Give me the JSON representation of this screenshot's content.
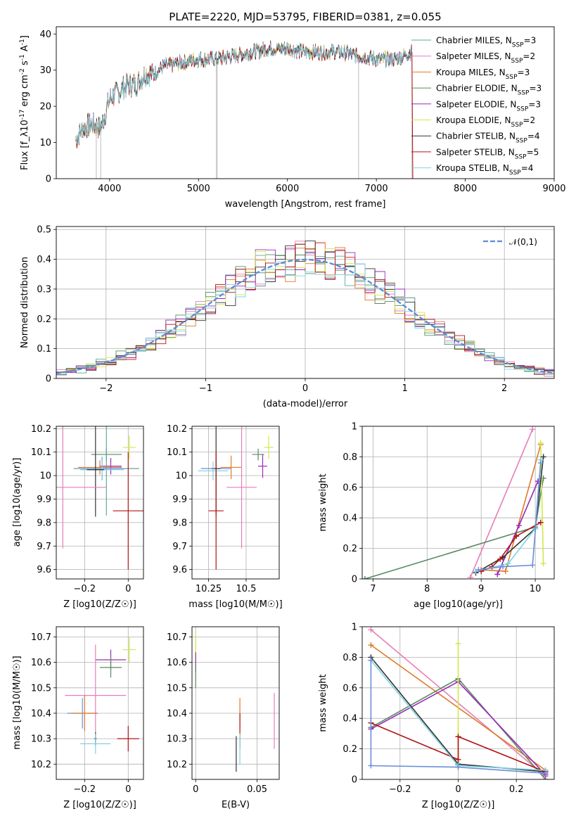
{
  "figure": {
    "title": "PLATE=2220, MJD=53795, FIBERID=0381, z=0.055"
  },
  "colors": {
    "Chabrier MILES": "#5fa6a0",
    "Salpeter MILES": "#e87db8",
    "Kroupa MILES": "#de7b2a",
    "Chabrier ELODIE": "#5a8a62",
    "Salpeter ELODIE": "#9a2ab8",
    "Kroupa ELODIE": "#d2e84a",
    "Chabrier STELIB": "#333333",
    "Salpeter STELIB": "#b01515",
    "Kroupa STELIB": "#7dd3e3",
    "blue": "#6a8fd8",
    "normal": "#5b8bd9"
  },
  "chart_data": [
    {
      "id": "spectrum",
      "type": "line",
      "xlabel": "wavelength [Angstrom, rest frame]",
      "ylabel": "Flux [f_λ10^-17 erg cm^-2 s^-1 A^-1]",
      "xlim": [
        3400,
        9000
      ],
      "ylim": [
        0,
        42
      ],
      "xticks": [
        4000,
        5000,
        6000,
        7000,
        8000,
        9000
      ],
      "yticks": [
        0,
        10,
        20,
        30,
        40
      ],
      "grid": false,
      "legend_position": "right",
      "legend": [
        "Chabrier MILES, N_SSP=3",
        "Salpeter MILES, N_SSP=2",
        "Kroupa MILES, N_SSP=3",
        "Chabrier ELODIE, N_SSP=3",
        "Salpeter ELODIE, N_SSP=3",
        "Kroupa ELODIE, N_SSP=2",
        "Chabrier STELIB, N_SSP=4",
        "Salpeter STELIB, N_SSP=5",
        "Kroupa STELIB, N_SSP=4"
      ],
      "continuum": {
        "x": [
          3620,
          3700,
          3800,
          3900,
          3950,
          4000,
          4100,
          4200,
          4300,
          4400,
          4500,
          4600,
          4800,
          5000,
          5200,
          5400,
          5600,
          5800,
          6000,
          6200,
          6400,
          6600,
          6800,
          7000,
          7200,
          7400
        ],
        "y": [
          11,
          14,
          15,
          14,
          18,
          22,
          24,
          26,
          26,
          29,
          29,
          31,
          32,
          33,
          33,
          34,
          35,
          36,
          36,
          35,
          35,
          35,
          34,
          33,
          33,
          35
        ]
      }
    },
    {
      "id": "residuals",
      "type": "histogram",
      "xlabel": "(data-model)/error",
      "ylabel": "Normed distribution",
      "xlim": [
        -2.5,
        2.5
      ],
      "ylim": [
        0,
        0.51
      ],
      "xticks": [
        -2,
        -1,
        0,
        1,
        2
      ],
      "yticks": [
        0.0,
        0.1,
        0.2,
        0.3,
        0.4,
        0.5
      ],
      "grid": true,
      "legend_position": "upper right",
      "legend": [
        "𝒩(0,1)"
      ],
      "bin_width": 0.1,
      "bin_centers": [
        -2.45,
        -2.35,
        -2.25,
        -2.15,
        -2.05,
        -1.95,
        -1.85,
        -1.75,
        -1.65,
        -1.55,
        -1.45,
        -1.35,
        -1.25,
        -1.15,
        -1.05,
        -0.95,
        -0.85,
        -0.75,
        -0.65,
        -0.55,
        -0.45,
        -0.35,
        -0.25,
        -0.15,
        -0.05,
        0.05,
        0.15,
        0.25,
        0.35,
        0.45,
        0.55,
        0.65,
        0.75,
        0.85,
        0.95,
        1.05,
        1.15,
        1.25,
        1.35,
        1.45,
        1.55,
        1.65,
        1.75,
        1.85,
        1.95,
        2.05,
        2.15,
        2.25,
        2.35,
        2.45
      ]
    },
    {
      "id": "age-Z",
      "type": "scatter",
      "xlabel": "Z [log10(Z/Z☉)]",
      "ylabel": "age [log10(age/yr)]",
      "xlim": [
        -0.33,
        0.07
      ],
      "ylim": [
        9.56,
        10.21
      ],
      "xticks": [
        -0.2,
        0.0
      ],
      "yticks": [
        9.6,
        9.7,
        9.8,
        9.9,
        10.0,
        10.1,
        10.2
      ],
      "grid": true,
      "points": [
        {
          "model": "Kroupa ELODIE",
          "x": 0.005,
          "y": 10.12,
          "xerr": 0.03,
          "yerr": 0.05
        },
        {
          "model": "Chabrier ELODIE",
          "x": -0.1,
          "y": 10.09,
          "xerr": 0.07,
          "yerr": 0.025
        },
        {
          "model": "Salpeter ELODIE",
          "x": -0.08,
          "y": 10.04,
          "xerr": 0.05,
          "yerr": 0.035
        },
        {
          "model": "Kroupa MILES",
          "x": -0.13,
          "y": 10.035,
          "xerr": 0.1,
          "yerr": 0.03
        },
        {
          "model": "Chabrier MILES",
          "x": -0.1,
          "y": 10.03,
          "xerr": 0.15,
          "yerr": 0.2
        },
        {
          "model": "blue",
          "x": -0.12,
          "y": 10.03,
          "xerr": 0.1,
          "yerr": 0.05
        },
        {
          "model": "Kroupa STELIB",
          "x": -0.12,
          "y": 10.025,
          "xerr": 0.1,
          "yerr": 0.04
        },
        {
          "model": "Chabrier STELIB",
          "x": -0.15,
          "y": 10.025,
          "xerr": 0.04,
          "yerr": 0.2
        },
        {
          "model": "Salpeter MILES",
          "x": -0.3,
          "y": 9.95,
          "xerr": 0.2,
          "yerr": 0.26
        },
        {
          "model": "Salpeter STELIB",
          "x": 0.0,
          "y": 9.85,
          "xerr": 0.07,
          "yerr": 0.25
        }
      ]
    },
    {
      "id": "age-mass",
      "type": "scatter",
      "xlabel": "mass [log10(M/M☉)]",
      "ylabel": "",
      "xlim": [
        10.14,
        10.72
      ],
      "ylim": [
        9.56,
        10.21
      ],
      "xticks": [
        10.25,
        10.5
      ],
      "yticks": [
        9.6,
        9.7,
        9.8,
        9.9,
        10.0,
        10.1,
        10.2
      ],
      "grid": true,
      "points": [
        {
          "model": "Kroupa ELODIE",
          "x": 10.65,
          "y": 10.12,
          "xerr": 0.03,
          "yerr": 0.05
        },
        {
          "model": "Chabrier ELODIE",
          "x": 10.58,
          "y": 10.09,
          "xerr": 0.04,
          "yerr": 0.025
        },
        {
          "model": "Salpeter ELODIE",
          "x": 10.61,
          "y": 10.04,
          "xerr": 0.03,
          "yerr": 0.05
        },
        {
          "model": "Kroupa MILES",
          "x": 10.4,
          "y": 10.035,
          "xerr": 0.07,
          "yerr": 0.05
        },
        {
          "model": "blue",
          "x": 10.3,
          "y": 10.03,
          "xerr": 0.1,
          "yerr": 0.04
        },
        {
          "model": "Chabrier STELIB",
          "x": 10.3,
          "y": 10.03,
          "xerr": 0.03,
          "yerr": 0.2
        },
        {
          "model": "Kroupa STELIB",
          "x": 10.28,
          "y": 10.02,
          "xerr": 0.1,
          "yerr": 0.04
        },
        {
          "model": "Salpeter MILES",
          "x": 10.47,
          "y": 9.95,
          "xerr": 0.1,
          "yerr": 0.26
        },
        {
          "model": "Salpeter STELIB",
          "x": 10.3,
          "y": 9.85,
          "xerr": 0.05,
          "yerr": 0.25
        }
      ]
    },
    {
      "id": "weight-age",
      "type": "line",
      "xlabel": "age [log10(age/yr)]",
      "ylabel": "mass weight",
      "xlim": [
        6.8,
        10.35
      ],
      "ylim": [
        0,
        1.0
      ],
      "xticks": [
        7,
        8,
        9,
        10
      ],
      "yticks": [
        0.0,
        0.2,
        0.4,
        0.6,
        0.8,
        1.0
      ],
      "grid": true,
      "series": [
        {
          "model": "Salpeter MILES",
          "x": [
            8.8,
            9.95
          ],
          "y": [
            0.01,
            0.98
          ]
        },
        {
          "model": "Kroupa MILES",
          "x": [
            9.0,
            9.45,
            10.1
          ],
          "y": [
            0.06,
            0.05,
            0.88
          ]
        },
        {
          "model": "Chabrier ELODIE",
          "x": [
            6.85,
            10.0,
            10.15
          ],
          "y": [
            0.0,
            0.34,
            0.66
          ]
        },
        {
          "model": "Salpeter ELODIE",
          "x": [
            9.3,
            9.7,
            10.05
          ],
          "y": [
            0.03,
            0.35,
            0.64
          ]
        },
        {
          "model": "Kroupa ELODIE",
          "x": [
            10.1,
            10.15
          ],
          "y": [
            0.89,
            0.1
          ]
        },
        {
          "model": "Chabrier STELIB",
          "x": [
            8.9,
            9.4,
            10.0,
            10.15
          ],
          "y": [
            0.04,
            0.14,
            0.33,
            0.8
          ]
        },
        {
          "model": "Salpeter STELIB",
          "x": [
            9.0,
            9.2,
            9.35,
            9.65,
            10.1
          ],
          "y": [
            0.05,
            0.08,
            0.13,
            0.28,
            0.37
          ]
        },
        {
          "model": "Kroupa STELIB",
          "x": [
            8.9,
            9.5,
            10.0,
            10.1
          ],
          "y": [
            0.05,
            0.1,
            0.33,
            0.78
          ]
        },
        {
          "model": "blue",
          "x": [
            8.95,
            9.4,
            9.95,
            10.1
          ],
          "y": [
            0.06,
            0.08,
            0.09,
            0.76
          ]
        }
      ]
    },
    {
      "id": "mass-Z",
      "type": "scatter",
      "xlabel": "Z [log10(Z/Z☉)]",
      "ylabel": "mass [log10(M/M☉)]",
      "xlim": [
        -0.33,
        0.07
      ],
      "ylim": [
        10.14,
        10.74
      ],
      "xticks": [
        -0.2,
        0.0
      ],
      "yticks": [
        10.2,
        10.3,
        10.4,
        10.5,
        10.6,
        10.7
      ],
      "grid": true,
      "points": [
        {
          "model": "Kroupa ELODIE",
          "x": 0.005,
          "y": 10.65,
          "xerr": 0.03,
          "yerr": 0.05
        },
        {
          "model": "Salpeter ELODIE",
          "x": -0.08,
          "y": 10.61,
          "xerr": 0.07,
          "yerr": 0.04
        },
        {
          "model": "Chabrier ELODIE",
          "x": -0.08,
          "y": 10.58,
          "xerr": 0.05,
          "yerr": 0.04
        },
        {
          "model": "Salpeter MILES",
          "x": -0.15,
          "y": 10.47,
          "xerr": 0.14,
          "yerr": 0.2
        },
        {
          "model": "blue",
          "x": -0.21,
          "y": 10.4,
          "xerr": 0.07,
          "yerr": 0.06
        },
        {
          "model": "Kroupa MILES",
          "x": -0.2,
          "y": 10.4,
          "xerr": 0.06,
          "yerr": 0.07
        },
        {
          "model": "Chabrier STELIB",
          "x": -0.15,
          "y": 10.3,
          "xerr": 0.005,
          "yerr": 0.025
        },
        {
          "model": "Salpeter STELIB",
          "x": 0.0,
          "y": 10.3,
          "xerr": 0.05,
          "yerr": 0.05
        },
        {
          "model": "Kroupa STELIB",
          "x": -0.15,
          "y": 10.28,
          "xerr": 0.07,
          "yerr": 0.04
        }
      ]
    },
    {
      "id": "mass-EBV",
      "type": "scatter",
      "xlabel": "E(B-V)",
      "ylabel": "",
      "xlim": [
        -0.003,
        0.068
      ],
      "ylim": [
        10.14,
        10.74
      ],
      "xticks": [
        0.0,
        0.05
      ],
      "yticks": [
        10.2,
        10.3,
        10.4,
        10.5,
        10.6,
        10.7
      ],
      "grid": true,
      "points": [
        {
          "model": "Kroupa ELODIE",
          "x": 0.0,
          "y": 10.66,
          "xerr": 0.0,
          "yerr": 0.06
        },
        {
          "model": "Salpeter ELODIE",
          "x": 0.0,
          "y": 10.6,
          "xerr": 0.0,
          "yerr": 0.04
        },
        {
          "model": "Chabrier ELODIE",
          "x": 0.0,
          "y": 10.55,
          "xerr": 0.0,
          "yerr": 0.05
        },
        {
          "model": "Kroupa MILES",
          "x": 0.036,
          "y": 10.4,
          "xerr": 0.0,
          "yerr": 0.06
        },
        {
          "model": "Salpeter STELIB",
          "x": 0.036,
          "y": 10.33,
          "xerr": 0.0,
          "yerr": 0.07
        },
        {
          "model": "Salpeter MILES",
          "x": 0.064,
          "y": 10.37,
          "xerr": 0.0,
          "yerr": 0.11
        },
        {
          "model": "Chabrier STELIB",
          "x": 0.033,
          "y": 10.24,
          "xerr": 0.0,
          "yerr": 0.07
        },
        {
          "model": "Kroupa STELIB",
          "x": 0.036,
          "y": 10.26,
          "xerr": 0.0,
          "yerr": 0.06
        }
      ]
    },
    {
      "id": "weight-Z",
      "type": "line",
      "xlabel": "Z [log10(Z/Z☉)]",
      "ylabel": "mass weight",
      "xlim": [
        -0.33,
        0.33
      ],
      "ylim": [
        0,
        1.0
      ],
      "xticks": [
        -0.2,
        0.0,
        0.2
      ],
      "yticks": [
        0.0,
        0.2,
        0.4,
        0.6,
        0.8,
        1.0
      ],
      "grid": true,
      "series": [
        {
          "model": "Salpeter MILES",
          "x": [
            -0.3,
            0.3
          ],
          "y": [
            0.98,
            0.02
          ]
        },
        {
          "model": "Kroupa MILES",
          "x": [
            -0.3,
            0.3
          ],
          "y": [
            0.88,
            0.06
          ]
        },
        {
          "model": "Chabrier ELODIE",
          "x": [
            -0.3,
            0.0,
            0.3
          ],
          "y": [
            0.34,
            0.66,
            0.0
          ]
        },
        {
          "model": "Salpeter ELODIE",
          "x": [
            -0.3,
            0.0,
            0.3
          ],
          "y": [
            0.33,
            0.64,
            0.03
          ]
        },
        {
          "model": "Kroupa ELODIE",
          "x": [
            0.0,
            0.0
          ],
          "y": [
            0.89,
            0.1
          ]
        },
        {
          "model": "Chabrier STELIB",
          "x": [
            -0.3,
            0.0,
            0.3
          ],
          "y": [
            0.8,
            0.1,
            0.05
          ]
        },
        {
          "model": "Salpeter STELIB",
          "x": [
            -0.3,
            0.0,
            0.0,
            0.3
          ],
          "y": [
            0.37,
            0.13,
            0.28,
            0.05
          ]
        },
        {
          "model": "Kroupa STELIB",
          "x": [
            -0.3,
            0.0,
            0.3
          ],
          "y": [
            0.78,
            0.09,
            0.06
          ]
        },
        {
          "model": "blue",
          "x": [
            -0.3,
            -0.3,
            0.0,
            0.3
          ],
          "y": [
            0.78,
            0.09,
            0.08,
            0.04
          ]
        }
      ]
    }
  ]
}
